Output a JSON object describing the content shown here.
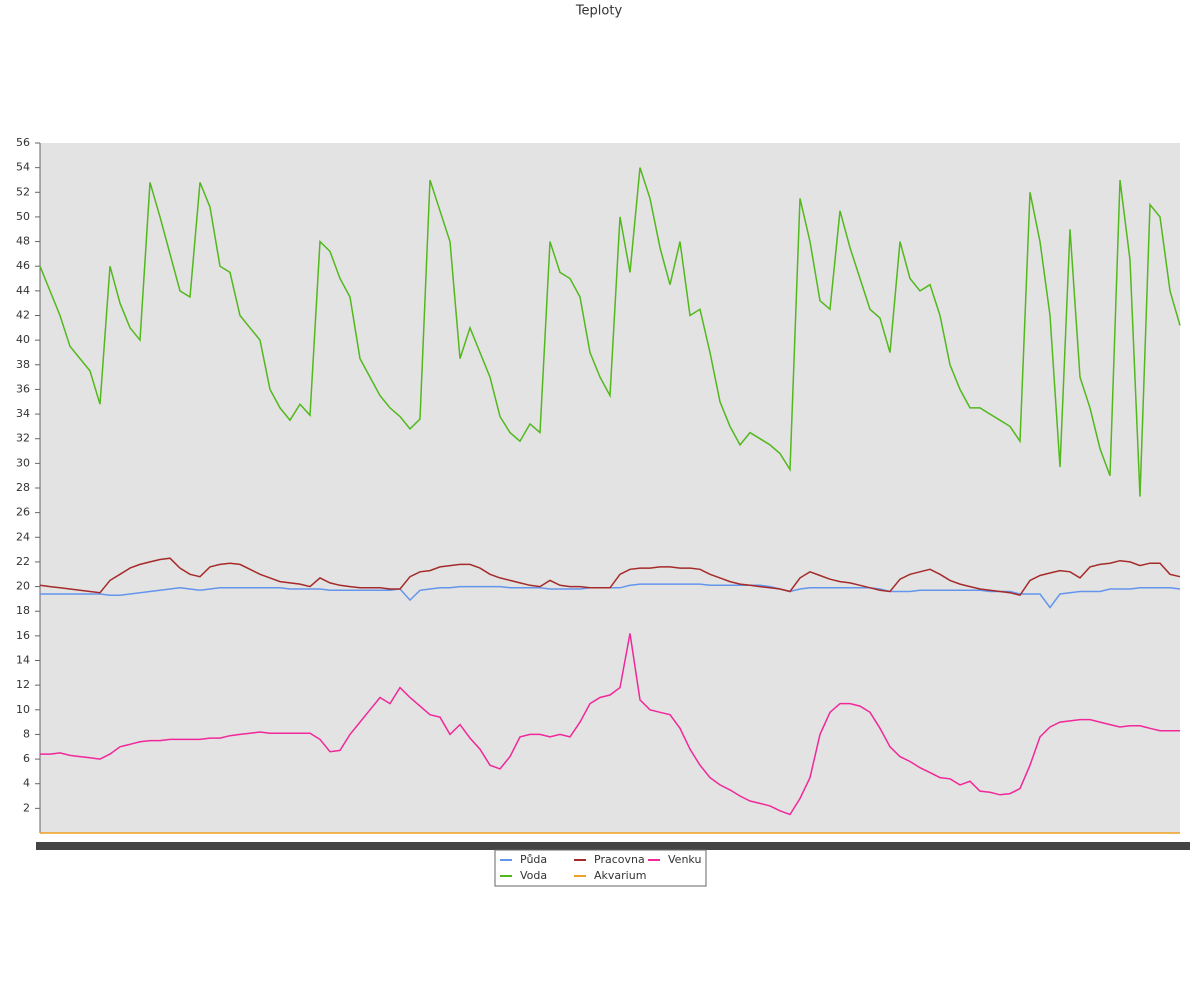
{
  "chart_data": {
    "type": "line",
    "title": "Teploty",
    "categories": [
      null,
      null,
      null,
      null,
      null,
      null,
      null,
      null,
      null,
      null,
      null,
      null,
      null,
      null,
      null,
      null,
      null,
      null,
      null,
      null,
      null,
      null,
      null,
      null,
      null,
      null,
      null,
      null,
      null,
      null,
      null,
      null,
      null,
      null,
      null,
      null,
      null,
      null,
      null,
      null,
      null,
      null,
      null,
      null,
      null,
      null,
      null,
      null,
      null,
      null,
      null,
      null,
      null,
      null,
      null,
      null,
      null,
      null,
      null,
      null,
      null,
      null,
      null,
      null,
      null,
      null,
      null,
      null,
      null,
      null,
      null,
      null,
      null,
      null,
      null,
      null,
      null,
      null,
      null,
      null,
      null,
      null,
      null,
      null,
      null,
      null,
      null,
      null,
      null,
      null,
      null,
      null,
      null,
      null,
      null,
      null,
      null,
      null,
      null,
      null,
      null,
      null,
      null,
      null,
      null,
      null,
      null,
      null,
      null,
      null,
      null,
      null,
      null,
      null,
      null
    ],
    "series": [
      {
        "name": "Půda",
        "color": "#6495ed",
        "values": [
          19.4,
          19.4,
          19.4,
          19.4,
          19.4,
          19.4,
          19.4,
          19.3,
          19.3,
          19.4,
          19.5,
          19.6,
          19.7,
          19.8,
          19.9,
          19.8,
          19.7,
          19.8,
          19.9,
          19.9,
          19.9,
          19.9,
          19.9,
          19.9,
          19.9,
          19.8,
          19.8,
          19.8,
          19.8,
          19.7,
          19.7,
          19.7,
          19.7,
          19.7,
          19.7,
          19.7,
          19.8,
          18.9,
          19.7,
          19.8,
          19.9,
          19.9,
          20.0,
          20.0,
          20.0,
          20.0,
          20.0,
          19.9,
          19.9,
          19.9,
          19.9,
          19.8,
          19.8,
          19.8,
          19.8,
          19.9,
          19.9,
          19.9,
          19.9,
          20.1,
          20.2,
          20.2,
          20.2,
          20.2,
          20.2,
          20.2,
          20.2,
          20.1,
          20.1,
          20.1,
          20.1,
          20.1,
          20.1,
          20.0,
          19.8,
          19.6,
          19.8,
          19.9,
          19.9,
          19.9,
          19.9,
          19.9,
          19.9,
          19.9,
          19.8,
          19.6,
          19.6,
          19.6,
          19.7,
          19.7,
          19.7,
          19.7,
          19.7,
          19.7,
          19.7,
          19.6,
          19.6,
          19.6,
          19.4,
          19.4,
          19.4,
          18.3,
          19.4,
          19.5,
          19.6,
          19.6,
          19.6,
          19.8,
          19.8,
          19.8,
          19.9,
          19.9,
          19.9,
          19.9,
          19.8
        ]
      },
      {
        "name": "Voda",
        "color": "#52b81c",
        "values": [
          46,
          44,
          42,
          39.5,
          38.5,
          37.5,
          34.8,
          46,
          43,
          41,
          40,
          52.8,
          50,
          47,
          44,
          43.5,
          52.8,
          50.8,
          46,
          45.5,
          42,
          41,
          40,
          36,
          34.5,
          33.5,
          34.8,
          33.9,
          48,
          47.2,
          45,
          43.5,
          38.5,
          37,
          35.5,
          34.5,
          33.8,
          32.8,
          33.6,
          53,
          50.5,
          48,
          38.5,
          41,
          39,
          37,
          33.8,
          32.5,
          31.8,
          33.2,
          32.5,
          48,
          45.5,
          45,
          43.5,
          39,
          37,
          35.5,
          50,
          45.5,
          54,
          51.5,
          47.5,
          44.5,
          48,
          42,
          42.5,
          39,
          35,
          33,
          31.5,
          32.5,
          32,
          31.5,
          30.8,
          29.5,
          51.5,
          48,
          43.2,
          42.5,
          50.5,
          47.5,
          45,
          42.5,
          41.8,
          39,
          48,
          45,
          44,
          44.5,
          42,
          38,
          36,
          34.5,
          34.5,
          34,
          33.5,
          33,
          31.8,
          52,
          48,
          42,
          29.7,
          49,
          37,
          34.5,
          31.2,
          29,
          53,
          46.5,
          27.3,
          51,
          50,
          44,
          41.2
        ]
      },
      {
        "name": "Pracovna",
        "color": "#a52a2a",
        "values": [
          20.1,
          20.0,
          19.9,
          19.8,
          19.7,
          19.6,
          19.5,
          20.5,
          21.0,
          21.5,
          21.8,
          22.0,
          22.2,
          22.3,
          21.5,
          21.0,
          20.8,
          21.6,
          21.8,
          21.9,
          21.8,
          21.4,
          21.0,
          20.7,
          20.4,
          20.3,
          20.2,
          20.0,
          20.7,
          20.3,
          20.1,
          20.0,
          19.9,
          19.9,
          19.9,
          19.8,
          19.8,
          20.8,
          21.2,
          21.3,
          21.6,
          21.7,
          21.8,
          21.8,
          21.5,
          21.0,
          20.7,
          20.5,
          20.3,
          20.1,
          20.0,
          20.5,
          20.1,
          20.0,
          20.0,
          19.9,
          19.9,
          19.9,
          21.0,
          21.4,
          21.5,
          21.5,
          21.6,
          21.6,
          21.5,
          21.5,
          21.4,
          21.0,
          20.7,
          20.4,
          20.2,
          20.1,
          20.0,
          19.9,
          19.8,
          19.6,
          20.7,
          21.2,
          20.9,
          20.6,
          20.4,
          20.3,
          20.1,
          19.9,
          19.7,
          19.6,
          20.6,
          21.0,
          21.2,
          21.4,
          21.0,
          20.5,
          20.2,
          20.0,
          19.8,
          19.7,
          19.6,
          19.5,
          19.3,
          20.5,
          20.9,
          21.1,
          21.3,
          21.2,
          20.7,
          21.6,
          21.8,
          21.9,
          22.1,
          22.0,
          21.7,
          21.9,
          21.9,
          21.0,
          20.8
        ]
      },
      {
        "name": "Akvarium",
        "color": "#f0a020",
        "values": [
          0,
          0,
          0,
          0,
          0,
          0,
          0,
          0,
          0,
          0,
          0,
          0,
          0,
          0,
          0,
          0,
          0,
          0,
          0,
          0,
          0,
          0,
          0,
          0,
          0,
          0,
          0,
          0,
          0,
          0,
          0,
          0,
          0,
          0,
          0,
          0,
          0,
          0,
          0,
          0,
          0,
          0,
          0,
          0,
          0,
          0,
          0,
          0,
          0,
          0,
          0,
          0,
          0,
          0,
          0,
          0,
          0,
          0,
          0,
          0,
          0,
          0,
          0,
          0,
          0,
          0,
          0,
          0,
          0,
          0,
          0,
          0,
          0,
          0,
          0,
          0,
          0,
          0,
          0,
          0,
          0,
          0,
          0,
          0,
          0,
          0,
          0,
          0,
          0,
          0,
          0,
          0,
          0,
          0,
          0,
          0,
          0,
          0,
          0,
          0,
          0,
          0,
          0,
          0,
          0,
          0,
          0,
          0,
          0,
          0,
          0,
          0,
          0,
          0,
          0
        ]
      },
      {
        "name": "Venku",
        "color": "#f0289a",
        "values": [
          6.4,
          6.4,
          6.5,
          6.3,
          6.2,
          6.1,
          6.0,
          6.4,
          7.0,
          7.2,
          7.4,
          7.5,
          7.5,
          7.6,
          7.6,
          7.6,
          7.6,
          7.7,
          7.7,
          7.9,
          8.0,
          8.1,
          8.2,
          8.1,
          8.1,
          8.1,
          8.1,
          8.1,
          7.6,
          6.6,
          6.7,
          8.0,
          9.0,
          10.0,
          11.0,
          10.5,
          11.8,
          11.0,
          10.3,
          9.6,
          9.4,
          8.0,
          8.8,
          7.7,
          6.8,
          5.5,
          5.2,
          6.2,
          7.8,
          8.0,
          8.0,
          7.8,
          8.0,
          7.8,
          9.0,
          10.5,
          11.0,
          11.2,
          11.8,
          16.2,
          10.8,
          10.0,
          9.8,
          9.6,
          8.5,
          6.8,
          5.5,
          4.5,
          3.9,
          3.5,
          3.0,
          2.6,
          2.4,
          2.2,
          1.8,
          1.5,
          2.8,
          4.5,
          8.0,
          9.8,
          10.5,
          10.5,
          10.3,
          9.8,
          8.5,
          7.0,
          6.2,
          5.8,
          5.3,
          4.9,
          4.5,
          4.4,
          3.9,
          4.2,
          3.4,
          3.3,
          3.1,
          3.2,
          3.6,
          5.5,
          7.8,
          8.6,
          9.0,
          9.1,
          9.2,
          9.2,
          9.0,
          8.8,
          8.6,
          8.7,
          8.7,
          8.5,
          8.3,
          8.3,
          8.3
        ]
      }
    ],
    "ylim": [
      0,
      56
    ],
    "yticks": [
      2,
      4,
      6,
      8,
      10,
      12,
      14,
      16,
      18,
      20,
      22,
      24,
      26,
      28,
      30,
      32,
      34,
      36,
      38,
      40,
      42,
      44,
      46,
      48,
      50,
      52,
      54,
      56
    ],
    "grid": false,
    "legend": "bottom"
  }
}
